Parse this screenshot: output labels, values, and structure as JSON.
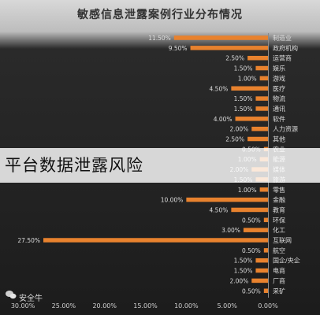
{
  "chart_data": {
    "type": "bar",
    "orientation": "horizontal-right-anchored",
    "title": "敏感信息泄露案例行业分布情况",
    "categories": [
      "制造业",
      "政府机构",
      "运营商",
      "娱乐",
      "游戏",
      "医疗",
      "物流",
      "通讯",
      "软件",
      "人力资源",
      "其他",
      "农业",
      "能源",
      "媒体",
      "旅游",
      "零售",
      "金融",
      "教育",
      "环保",
      "化工",
      "互联网",
      "航空",
      "国企/央企",
      "电商",
      "厂商",
      "采矿"
    ],
    "values": [
      11.5,
      9.5,
      2.5,
      1.5,
      1.0,
      4.5,
      1.5,
      1.5,
      4.0,
      2.0,
      2.5,
      0.5,
      1.0,
      2.0,
      1.5,
      1.0,
      10.0,
      4.5,
      0.5,
      3.0,
      27.5,
      0.5,
      1.5,
      1.5,
      2.0,
      0.5
    ],
    "value_labels": [
      "11.50%",
      "9.50%",
      "2.50%",
      "1.50%",
      "1.00%",
      "4.50%",
      "1.50%",
      "1.50%",
      "4.00%",
      "2.00%",
      "2.50%",
      "0.50%",
      "1.00%",
      "2.00%",
      "1.50%",
      "1.00%",
      "10.00%",
      "4.50%",
      "0.50%",
      "3.00%",
      "27.50%",
      "0.50%",
      "1.50%",
      "1.50%",
      "2.00%",
      "0.50%"
    ],
    "xlim": [
      0,
      30
    ],
    "x_ticks": [
      "0.00%",
      "5.00%",
      "10.00%",
      "15.00%",
      "20.00%",
      "25.00%",
      "30.00%"
    ],
    "grid": false,
    "colors": {
      "bar": "#e8822e",
      "label": "#dddddd",
      "tick": "#cfcfcf",
      "title": "#333333"
    }
  },
  "overlay": {
    "text": "平台数据泄露风险"
  },
  "watermark": {
    "text": "安全牛"
  }
}
